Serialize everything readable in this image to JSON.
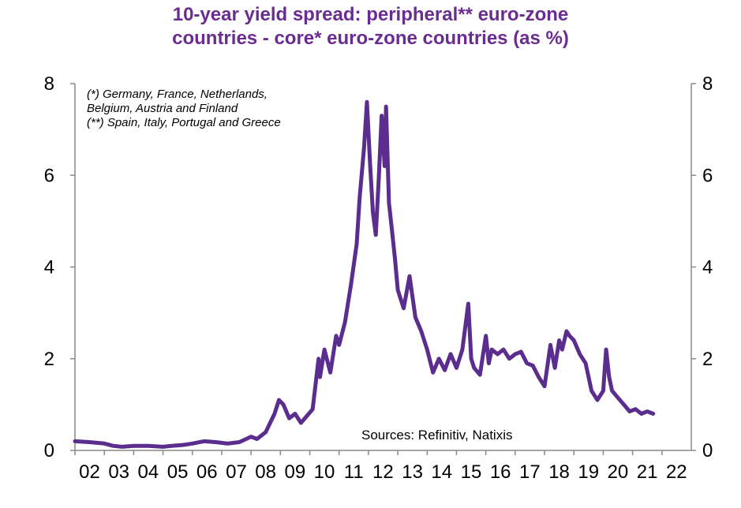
{
  "chart_data": {
    "type": "line",
    "title_line1": "10-year yield spread: peripheral** euro-zone",
    "title_line2": "countries - core* euro-zone countries (as %)",
    "notes": [
      "(*) Germany, France, Netherlands,",
      "Belgium, Austria and Finland",
      "(**) Spain, Italy, Portugal and Greece"
    ],
    "source": "Sources: Refinitiv, Natixis",
    "x_tick_labels": [
      "02",
      "03",
      "04",
      "05",
      "06",
      "07",
      "08",
      "09",
      "10",
      "11",
      "12",
      "13",
      "14",
      "15",
      "16",
      "17",
      "18",
      "19",
      "20",
      "21",
      "22"
    ],
    "y_tick_labels": [
      "0",
      "2",
      "4",
      "6",
      "8"
    ],
    "xlim": [
      2002.0,
      2023.0
    ],
    "ylim": [
      0,
      8
    ],
    "grid": false,
    "line_color": "#5b2d8e",
    "title_color": "#6a2c91",
    "series": [
      {
        "x": [
          2002.0,
          2002.5,
          2003.0,
          2003.3,
          2003.6,
          2004.0,
          2004.5,
          2005.0,
          2005.3,
          2005.7,
          2006.0,
          2006.4,
          2006.8,
          2007.2,
          2007.6,
          2008.0,
          2008.2,
          2008.5,
          2008.8,
          2008.95,
          2009.1,
          2009.3,
          2009.5,
          2009.7,
          2009.9,
          2010.1,
          2010.3,
          2010.35,
          2010.5,
          2010.7,
          2010.9,
          2011.0,
          2011.2,
          2011.4,
          2011.6,
          2011.7,
          2011.85,
          2011.95,
          2012.05,
          2012.15,
          2012.25,
          2012.35,
          2012.45,
          2012.55,
          2012.6,
          2012.7,
          2012.8,
          2012.9,
          2013.0,
          2013.2,
          2013.4,
          2013.6,
          2013.8,
          2014.0,
          2014.2,
          2014.4,
          2014.6,
          2014.8,
          2015.0,
          2015.2,
          2015.4,
          2015.5,
          2015.6,
          2015.8,
          2016.0,
          2016.1,
          2016.2,
          2016.4,
          2016.6,
          2016.8,
          2017.0,
          2017.2,
          2017.4,
          2017.6,
          2017.8,
          2018.0,
          2018.2,
          2018.35,
          2018.5,
          2018.6,
          2018.75,
          2018.85,
          2019.0,
          2019.2,
          2019.4,
          2019.6,
          2019.8,
          2020.0,
          2020.1,
          2020.2,
          2020.3,
          2020.5,
          2020.7,
          2020.9,
          2021.1,
          2021.3,
          2021.5,
          2021.7
        ],
        "y": [
          0.2,
          0.18,
          0.15,
          0.1,
          0.08,
          0.1,
          0.1,
          0.08,
          0.1,
          0.12,
          0.15,
          0.2,
          0.18,
          0.15,
          0.18,
          0.3,
          0.25,
          0.4,
          0.8,
          1.1,
          1.0,
          0.7,
          0.8,
          0.6,
          0.75,
          0.9,
          2.0,
          1.6,
          2.2,
          1.7,
          2.5,
          2.3,
          2.8,
          3.6,
          4.5,
          5.5,
          6.6,
          7.6,
          6.3,
          5.2,
          4.7,
          5.9,
          7.3,
          6.2,
          7.5,
          5.4,
          4.8,
          4.2,
          3.5,
          3.1,
          3.8,
          2.9,
          2.6,
          2.2,
          1.7,
          2.0,
          1.75,
          2.1,
          1.8,
          2.2,
          3.2,
          2.0,
          1.8,
          1.65,
          2.5,
          1.9,
          2.2,
          2.1,
          2.2,
          2.0,
          2.1,
          2.15,
          1.9,
          1.85,
          1.6,
          1.4,
          2.3,
          1.8,
          2.4,
          2.2,
          2.6,
          2.5,
          2.4,
          2.1,
          1.9,
          1.3,
          1.1,
          1.3,
          2.2,
          1.6,
          1.3,
          1.15,
          1.0,
          0.85,
          0.9,
          0.8,
          0.85,
          0.8
        ]
      }
    ]
  }
}
